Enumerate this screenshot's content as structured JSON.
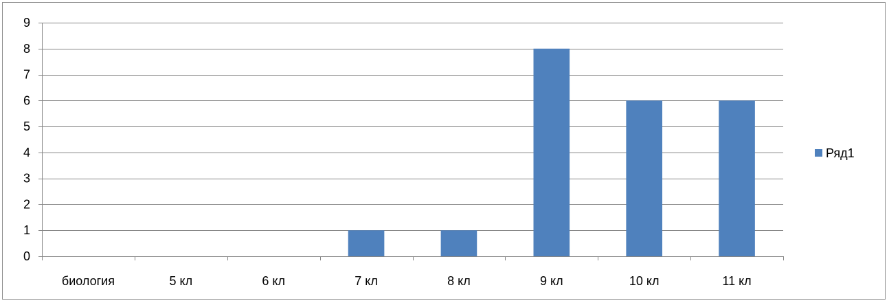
{
  "chart_data": {
    "type": "bar",
    "title": "",
    "xlabel": "",
    "ylabel": "",
    "categories": [
      "биология",
      "5 кл",
      "6 кл",
      "7 кл",
      "8 кл",
      "9 кл",
      "10 кл",
      "11 кл"
    ],
    "series": [
      {
        "name": "Ряд1",
        "values": [
          0,
          0,
          0,
          1,
          1,
          8,
          6,
          6
        ],
        "color": "#4f81bd"
      }
    ],
    "ylim": [
      0,
      9
    ],
    "yticks": [
      "0",
      "1",
      "2",
      "3",
      "4",
      "5",
      "6",
      "7",
      "8",
      "9"
    ],
    "grid": true,
    "legend_position": "right"
  }
}
